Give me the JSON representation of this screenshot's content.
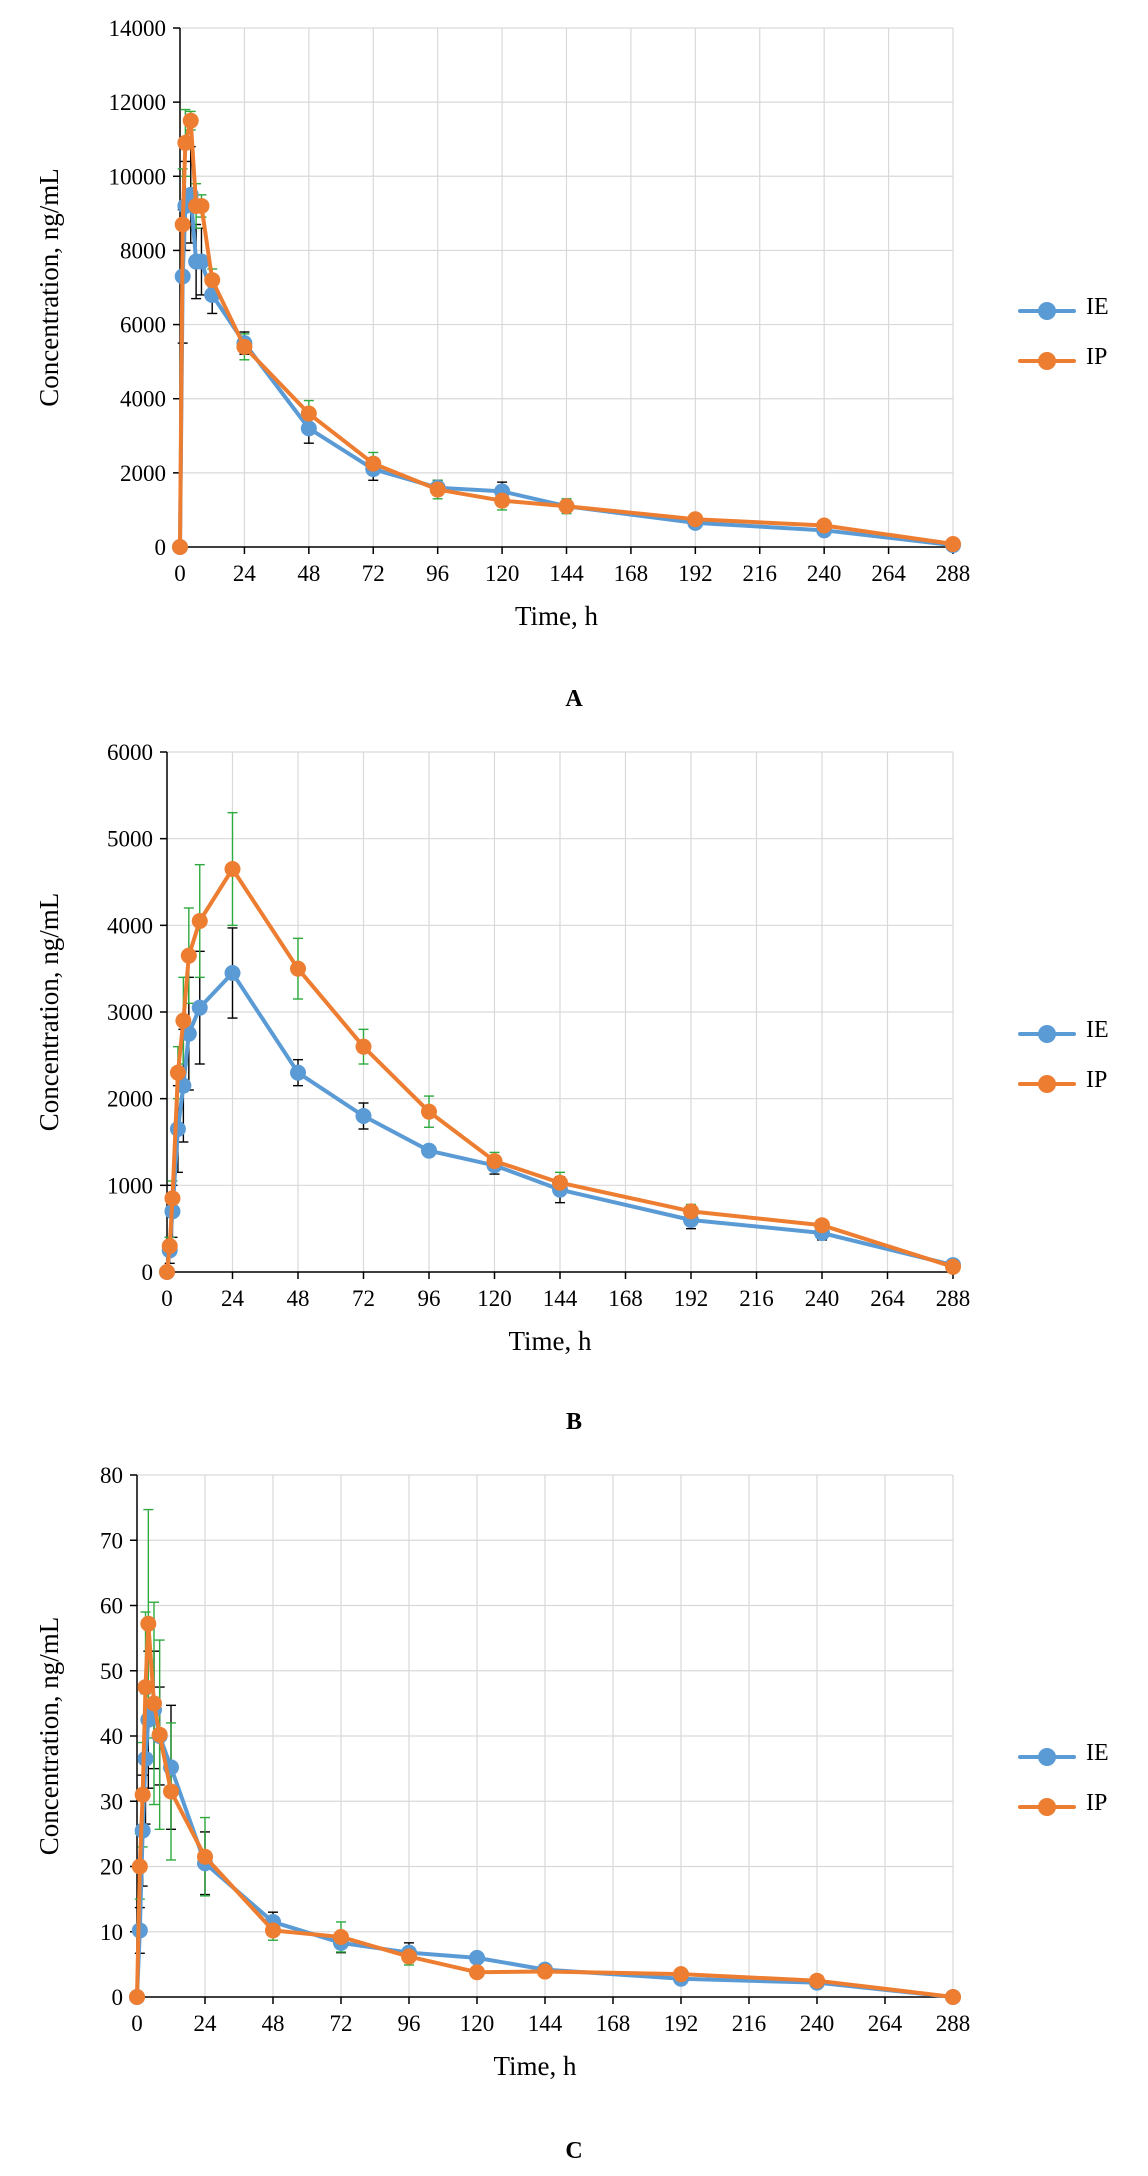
{
  "figure": {
    "colors": {
      "IE": "#5B9BD5",
      "IP": "#ED7D31",
      "err_IE": "#000000",
      "err_IP": "#2EAA3F"
    }
  },
  "chart_data": [
    {
      "type": "line",
      "panel_label": "A",
      "xlabel": "Time, h",
      "ylabel": "Concentration, ng/mL",
      "xlim": [
        0,
        288
      ],
      "ylim": [
        0,
        14000
      ],
      "xticks": [
        0,
        24,
        48,
        72,
        96,
        120,
        144,
        168,
        192,
        216,
        240,
        264,
        288
      ],
      "yticks": [
        0,
        2000,
        4000,
        6000,
        8000,
        10000,
        12000,
        14000
      ],
      "grid": true,
      "legend_position": "right",
      "series": [
        {
          "name": "IE",
          "x": [
            0,
            1,
            2,
            4,
            6,
            8,
            12,
            24,
            48,
            72,
            96,
            120,
            144,
            192,
            240,
            288
          ],
          "y": [
            0,
            7300,
            9200,
            9500,
            7700,
            7700,
            6800,
            5500,
            3200,
            2100,
            1600,
            1500,
            1100,
            650,
            450,
            50
          ],
          "err": [
            0,
            1800,
            1200,
            1300,
            1000,
            900,
            500,
            300,
            400,
            300,
            200,
            250,
            150,
            100,
            100,
            30
          ]
        },
        {
          "name": "IP",
          "x": [
            0,
            1,
            2,
            4,
            6,
            8,
            12,
            24,
            48,
            72,
            96,
            120,
            144,
            192,
            240,
            288
          ],
          "y": [
            0,
            8700,
            10900,
            11500,
            9200,
            9200,
            7200,
            5400,
            3600,
            2250,
            1550,
            1250,
            1100,
            750,
            580,
            80
          ],
          "err": [
            0,
            1500,
            900,
            250,
            600,
            300,
            300,
            350,
            350,
            300,
            250,
            250,
            200,
            100,
            100,
            30
          ]
        }
      ]
    },
    {
      "type": "line",
      "panel_label": "B",
      "xlabel": "Time, h",
      "ylabel": "Concentration, ng/mL",
      "xlim": [
        0,
        288
      ],
      "ylim": [
        0,
        6000
      ],
      "xticks": [
        0,
        24,
        48,
        72,
        96,
        120,
        144,
        168,
        192,
        216,
        240,
        264,
        288
      ],
      "yticks": [
        0,
        1000,
        2000,
        3000,
        4000,
        5000,
        6000
      ],
      "grid": true,
      "legend_position": "right",
      "series": [
        {
          "name": "IE",
          "x": [
            0,
            1,
            2,
            4,
            6,
            8,
            12,
            24,
            48,
            72,
            96,
            120,
            144,
            192,
            240,
            288
          ],
          "y": [
            0,
            250,
            700,
            1650,
            2150,
            2750,
            3050,
            3450,
            2300,
            1800,
            1400,
            1230,
            950,
            600,
            450,
            80
          ],
          "err": [
            0,
            150,
            300,
            500,
            650,
            650,
            650,
            520,
            150,
            150,
            50,
            100,
            150,
            100,
            80,
            30
          ]
        },
        {
          "name": "IP",
          "x": [
            0,
            1,
            2,
            4,
            6,
            8,
            12,
            24,
            48,
            72,
            96,
            120,
            144,
            192,
            240,
            288
          ],
          "y": [
            0,
            300,
            850,
            2300,
            2900,
            3650,
            4050,
            4650,
            3500,
            2600,
            1850,
            1280,
            1030,
            700,
            540,
            60
          ],
          "err": [
            0,
            100,
            200,
            300,
            500,
            550,
            650,
            650,
            350,
            200,
            180,
            100,
            120,
            80,
            60,
            30
          ]
        }
      ]
    },
    {
      "type": "line",
      "panel_label": "C",
      "xlabel": "Time, h",
      "ylabel": "Concentration, ng/mL",
      "xlim": [
        0,
        288
      ],
      "ylim": [
        0,
        80
      ],
      "xticks": [
        0,
        24,
        48,
        72,
        96,
        120,
        144,
        168,
        192,
        216,
        240,
        264,
        288
      ],
      "yticks": [
        0,
        10,
        20,
        30,
        40,
        50,
        60,
        70,
        80
      ],
      "grid": true,
      "legend_position": "right",
      "series": [
        {
          "name": "IE",
          "x": [
            0,
            1,
            2,
            3,
            4,
            6,
            8,
            12,
            24,
            48,
            72,
            96,
            120,
            144,
            192,
            240,
            288
          ],
          "y": [
            0,
            10.2,
            25.5,
            36.5,
            42.5,
            44,
            40,
            35.2,
            20.5,
            11.5,
            8.3,
            6.8,
            6.0,
            4.2,
            2.8,
            2.2,
            0
          ],
          "err": [
            0,
            3.5,
            8.5,
            10,
            10.5,
            9,
            7.5,
            9.5,
            4.8,
            1.5,
            1.5,
            1.5,
            0.8,
            0.8,
            0.5,
            0.4,
            0
          ]
        },
        {
          "name": "IP",
          "x": [
            0,
            1,
            2,
            3,
            4,
            6,
            8,
            12,
            24,
            48,
            72,
            96,
            120,
            144,
            192,
            240,
            288
          ],
          "y": [
            0,
            20,
            31,
            47.5,
            57.2,
            45,
            40.2,
            31.5,
            21.5,
            10.2,
            9.2,
            6.2,
            3.8,
            3.9,
            3.5,
            2.5,
            0
          ],
          "err": [
            0,
            5,
            8,
            11.5,
            17.5,
            15.5,
            14.5,
            10.5,
            6.0,
            1.5,
            2.3,
            1.3,
            0.5,
            0.5,
            0.4,
            0.4,
            0
          ]
        }
      ]
    }
  ]
}
